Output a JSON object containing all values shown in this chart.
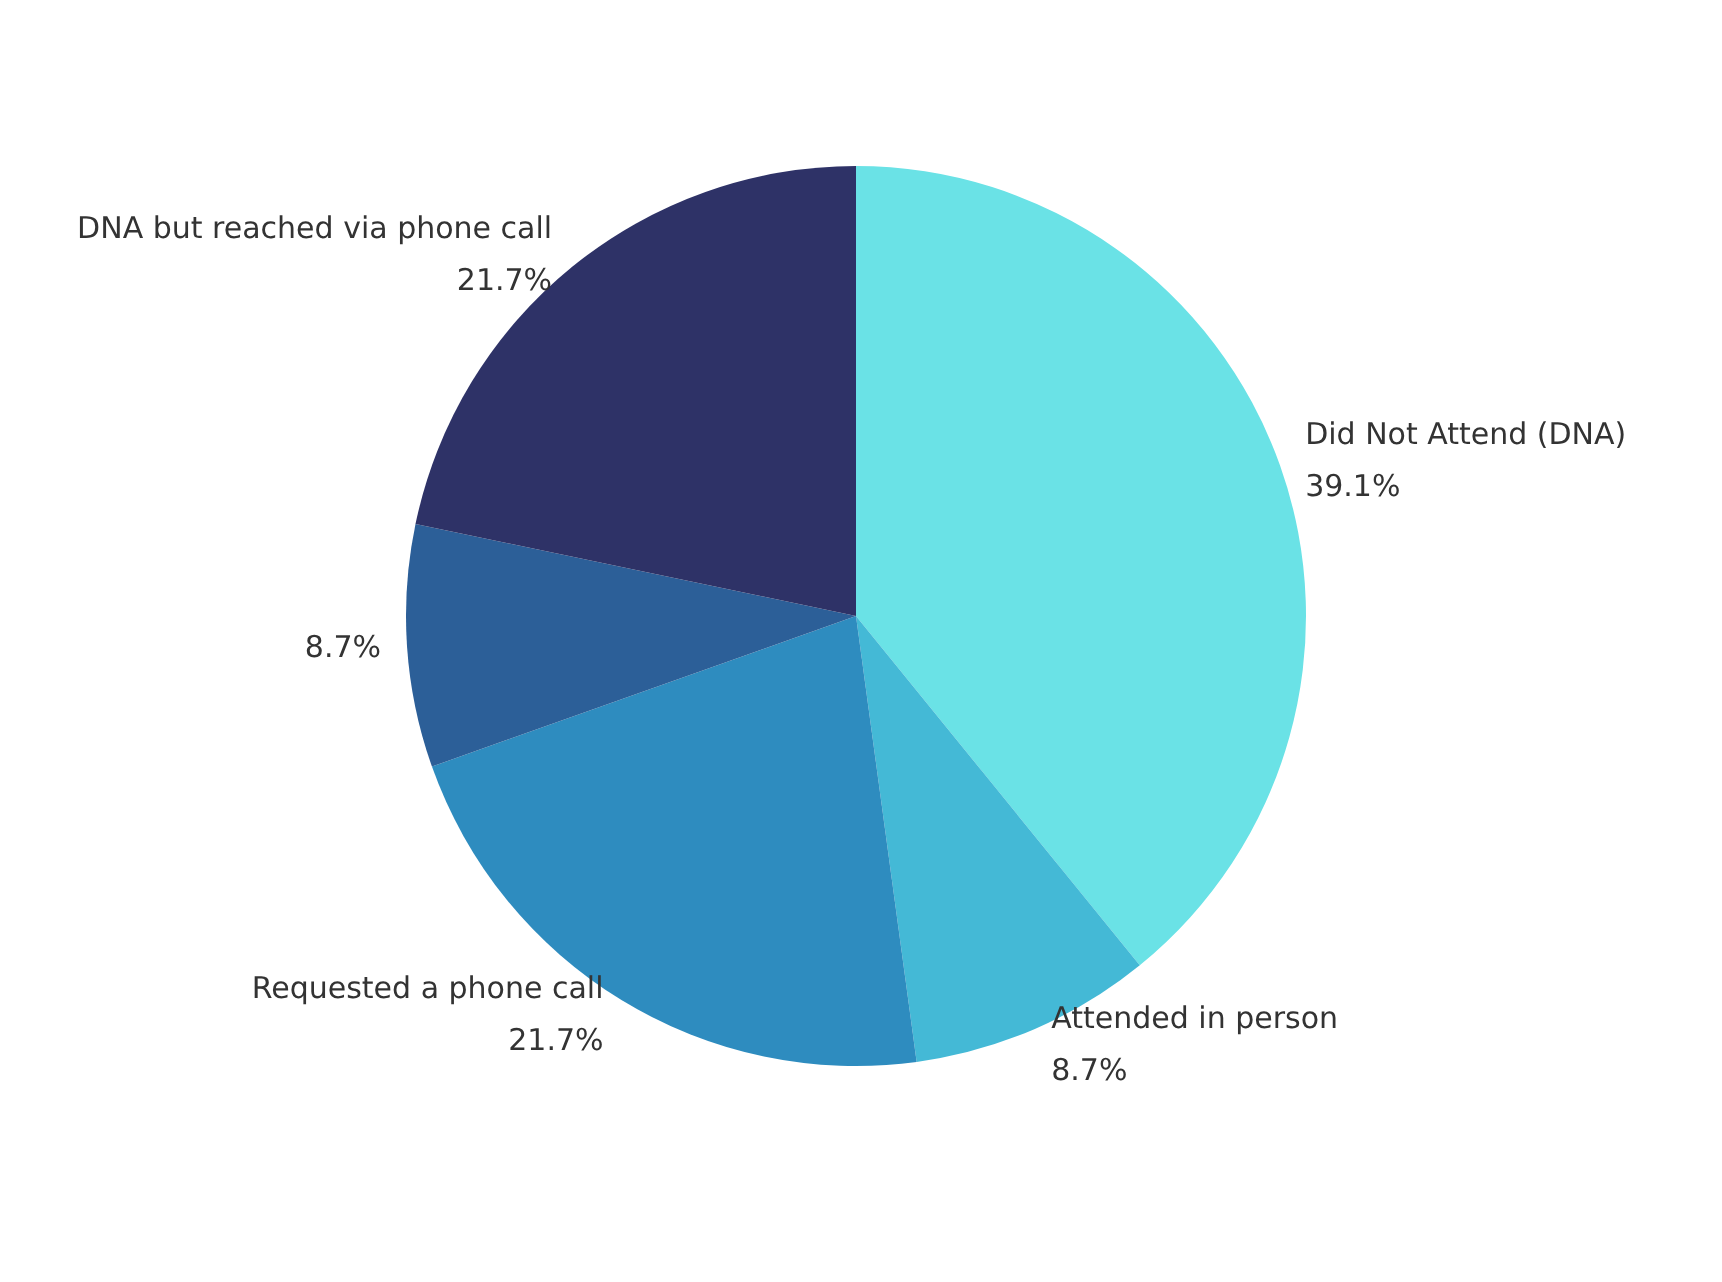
{
  "chart_data": {
    "type": "pie",
    "categories": [
      "Did Not Attend (DNA)",
      "Attended in person",
      "Requested a phone call",
      null,
      "DNA but reached via phone call"
    ],
    "values": [
      39.1,
      8.7,
      21.7,
      8.7,
      21.7
    ],
    "value_labels": [
      "39.1%",
      "8.7%",
      "21.7%",
      "8.7%",
      "21.7%"
    ],
    "colors": [
      "#6ae2e6",
      "#44b9d6",
      "#2e8cbf",
      "#2c5f98",
      "#2e3267"
    ]
  }
}
